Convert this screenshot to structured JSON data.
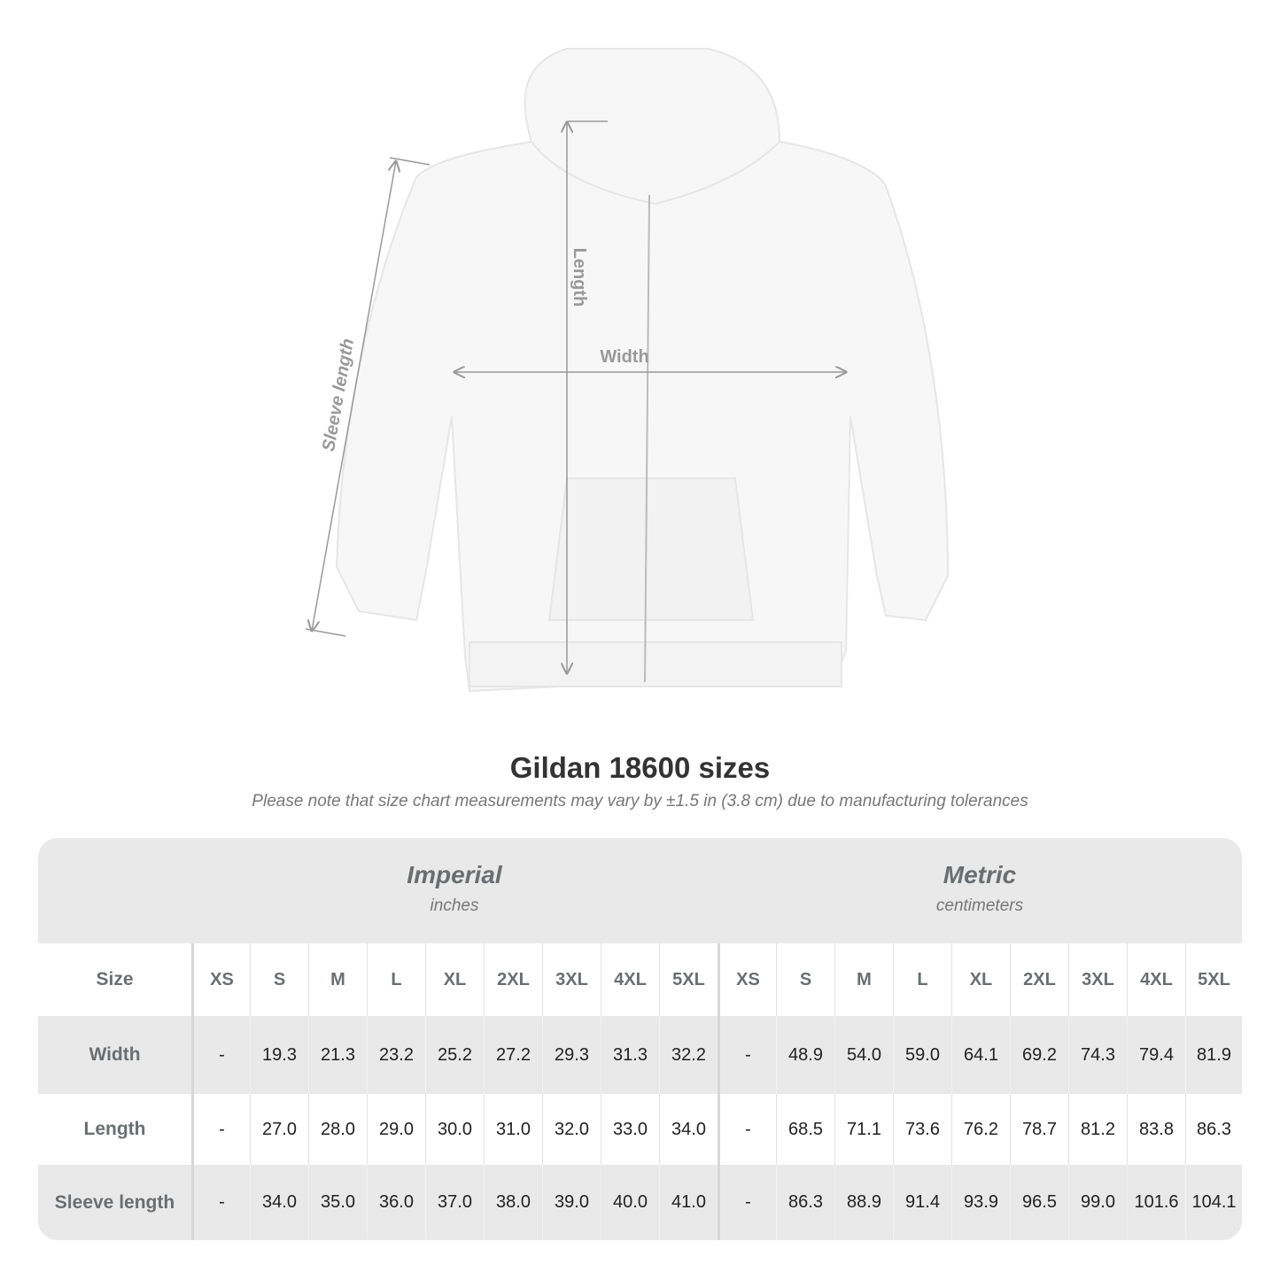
{
  "diagram": {
    "labels": {
      "length": "Length",
      "width": "Width",
      "sleeve": "Sleeve length"
    },
    "line_color": "#999999",
    "garment_color": "#f7f7f7"
  },
  "title": "Gildan 18600 sizes",
  "note": "Please note that size chart measurements may vary by ±1.5 in (3.8 cm) due to manufacturing tolerances",
  "table": {
    "imperial": {
      "name": "Imperial",
      "unit": "inches"
    },
    "metric": {
      "name": "Metric",
      "unit": "centimeters"
    },
    "size_label": "Size",
    "sizes": [
      "XS",
      "S",
      "M",
      "L",
      "XL",
      "2XL",
      "3XL",
      "4XL",
      "5XL"
    ],
    "rows": [
      {
        "label": "Width",
        "imperial": [
          "-",
          "19.3",
          "21.3",
          "23.2",
          "25.2",
          "27.2",
          "29.3",
          "31.3",
          "32.2"
        ],
        "metric": [
          "-",
          "48.9",
          "54.0",
          "59.0",
          "64.1",
          "69.2",
          "74.3",
          "79.4",
          "81.9"
        ]
      },
      {
        "label": "Length",
        "imperial": [
          "-",
          "27.0",
          "28.0",
          "29.0",
          "30.0",
          "31.0",
          "32.0",
          "33.0",
          "34.0"
        ],
        "metric": [
          "-",
          "68.5",
          "71.1",
          "73.6",
          "76.2",
          "78.7",
          "81.2",
          "83.8",
          "86.3"
        ]
      },
      {
        "label": "Sleeve length",
        "imperial": [
          "-",
          "34.0",
          "35.0",
          "36.0",
          "37.0",
          "38.0",
          "39.0",
          "40.0",
          "41.0"
        ],
        "metric": [
          "-",
          "86.3",
          "88.9",
          "91.4",
          "93.9",
          "96.5",
          "99.0",
          "101.6",
          "104.1"
        ]
      }
    ]
  }
}
